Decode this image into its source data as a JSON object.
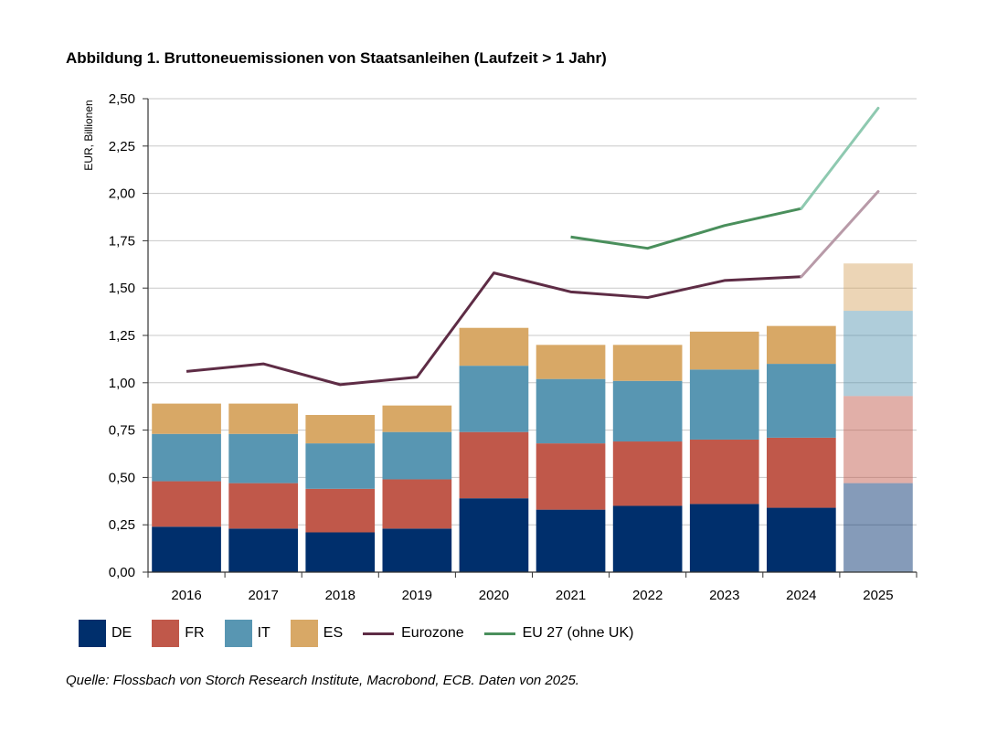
{
  "title": "Abbildung 1. Bruttoneuemissionen von Staatsanleihen (Laufzeit > 1 Jahr)",
  "source": "Quelle: Flossbach von Storch Research Institute, Macrobond, ECB. Daten von 2025.",
  "chart_data": {
    "type": "bar",
    "stacked": true,
    "title": "Abbildung 1. Bruttoneuemissionen von Staatsanleihen (Laufzeit > 1 Jahr)",
    "xlabel": "",
    "ylabel": "EUR, Billionen",
    "ylim": [
      0,
      2.5
    ],
    "yticks": [
      0,
      0.25,
      0.5,
      0.75,
      1.0,
      1.25,
      1.5,
      1.75,
      2.0,
      2.25,
      2.5
    ],
    "ytick_labels": [
      "0,00",
      "0,25",
      "0,50",
      "0,75",
      "1,00",
      "1,25",
      "1,50",
      "1,75",
      "2,00",
      "2,25",
      "2,50"
    ],
    "categories": [
      "2016",
      "2017",
      "2018",
      "2019",
      "2020",
      "2021",
      "2022",
      "2023",
      "2024",
      "2025"
    ],
    "projected_category": "2025",
    "series": [
      {
        "name": "DE",
        "color": "#002f6c",
        "values": [
          0.24,
          0.23,
          0.21,
          0.23,
          0.39,
          0.33,
          0.35,
          0.36,
          0.34,
          0.47
        ]
      },
      {
        "name": "FR",
        "color": "#c0584a",
        "values": [
          0.24,
          0.24,
          0.23,
          0.26,
          0.35,
          0.35,
          0.34,
          0.34,
          0.37,
          0.46
        ]
      },
      {
        "name": "IT",
        "color": "#5896b2",
        "values": [
          0.25,
          0.26,
          0.24,
          0.25,
          0.35,
          0.34,
          0.32,
          0.37,
          0.39,
          0.45
        ]
      },
      {
        "name": "ES",
        "color": "#d8a866",
        "values": [
          0.16,
          0.16,
          0.15,
          0.14,
          0.2,
          0.18,
          0.19,
          0.2,
          0.2,
          0.25
        ]
      }
    ],
    "lines": [
      {
        "name": "Eurozone",
        "color": "#5e2c45",
        "projected_color": "#b89aa8",
        "values": [
          1.06,
          1.1,
          0.99,
          1.03,
          1.58,
          1.48,
          1.45,
          1.54,
          1.56,
          2.01
        ]
      },
      {
        "name": "EU 27 (ohne UK)",
        "color": "#4a8f5c",
        "projected_color": "#8ec9b0",
        "values": [
          null,
          null,
          null,
          null,
          null,
          1.77,
          1.71,
          1.83,
          1.92,
          2.45
        ]
      }
    ],
    "legend_position": "bottom"
  }
}
